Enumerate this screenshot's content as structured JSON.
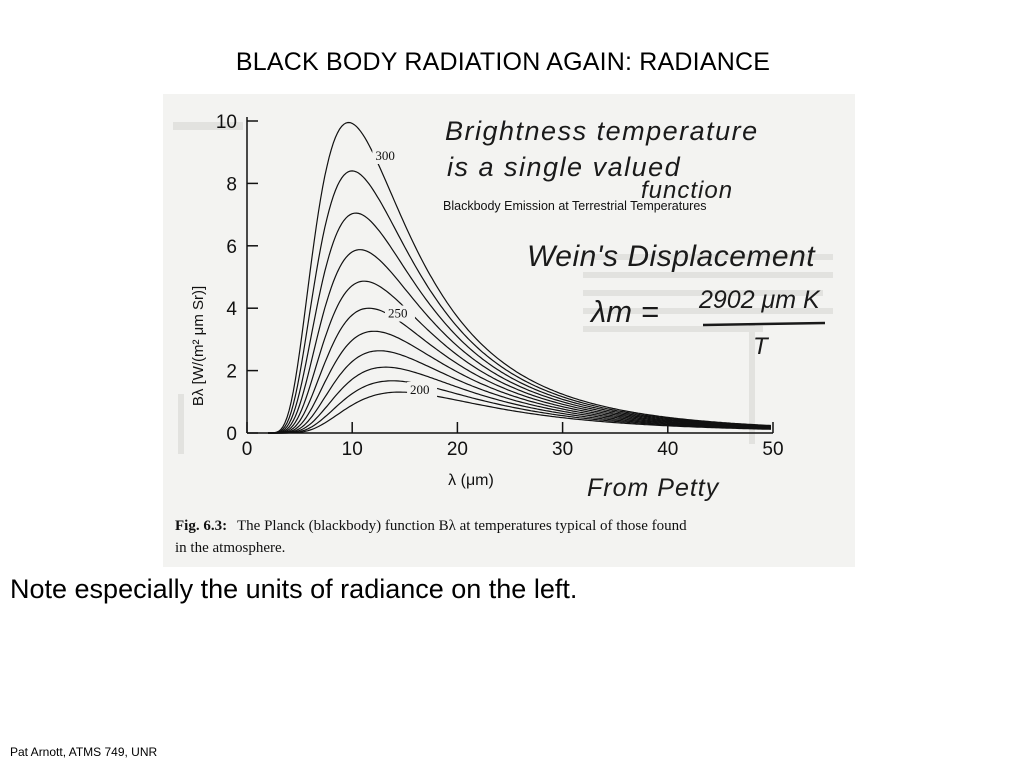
{
  "slide": {
    "title": "BLACK BODY RADIATION AGAIN:  RADIANCE",
    "note": "Note especially the units of radiance on the left.",
    "footer": "Pat Arnott, ATMS 749, UNR"
  },
  "figure": {
    "caption_label": "Fig. 6.3:",
    "caption_text": "The Planck (blackbody) function Bλ at temperatures typical of those found",
    "caption_text_2": "in the atmosphere."
  },
  "handwriting": {
    "line1": "Brightness temperature",
    "line2": "is a single valued",
    "line3": "function",
    "line4": "Wein's Displacement",
    "formula_lhs": "λm =",
    "formula_numerator": "2902 μm K",
    "formula_denominator": "T",
    "credit": "From Petty"
  },
  "chart_data": {
    "type": "line",
    "title": "Blackbody Emission at Terrestrial Temperatures",
    "xlabel": "λ (μm)",
    "ylabel": "Bλ  [W/(m² μm Sr)]",
    "xlim": [
      0,
      50
    ],
    "ylim": [
      0,
      10
    ],
    "x_ticks": [
      0,
      10,
      20,
      30,
      40,
      50
    ],
    "y_ticks": [
      0,
      2,
      4,
      6,
      8,
      10
    ],
    "series_temperatures_K": [
      200,
      210,
      220,
      230,
      240,
      250,
      260,
      270,
      280,
      290,
      300
    ],
    "curve_labels": [
      {
        "text": "300",
        "x": 12.2,
        "y": 8.75
      },
      {
        "text": "250",
        "x": 13.4,
        "y": 3.7
      },
      {
        "text": "200",
        "x": 15.5,
        "y": 1.25
      }
    ],
    "grid": false,
    "colors": {
      "curve": "#111111",
      "axis": "#111111",
      "paper": "#f3f3f1"
    }
  }
}
